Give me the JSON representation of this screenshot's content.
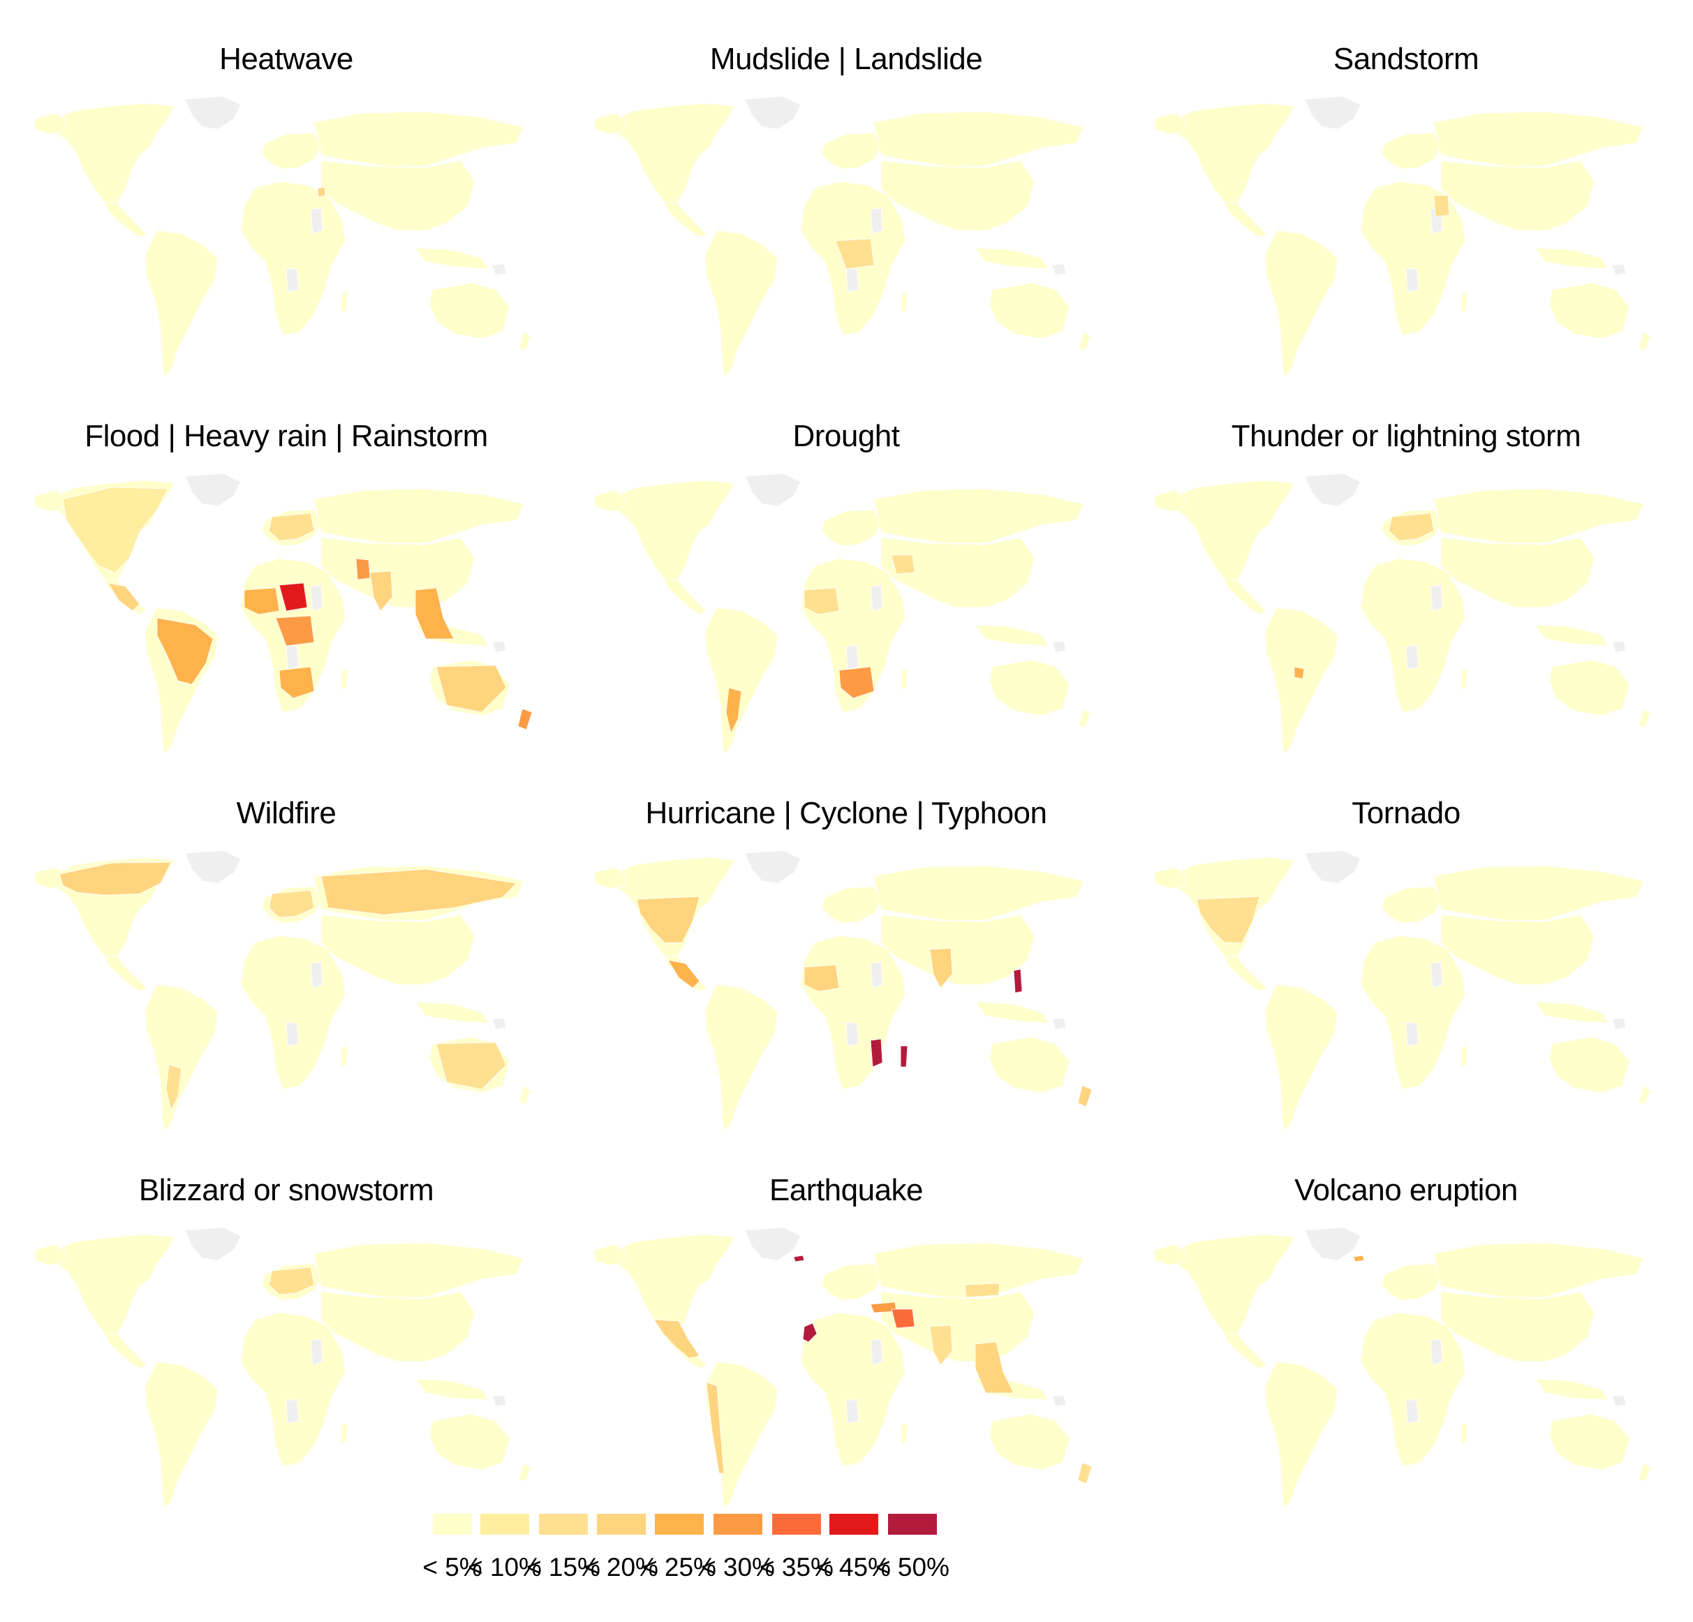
{
  "legend": {
    "bins": [
      {
        "label": "< 5%",
        "color": "#FFFFCC"
      },
      {
        "label": "< 10%",
        "color": "#FFEDA0"
      },
      {
        "label": "< 15%",
        "color": "#FEE090"
      },
      {
        "label": "< 20%",
        "color": "#FED47F"
      },
      {
        "label": "< 25%",
        "color": "#FEB24C"
      },
      {
        "label": "< 30%",
        "color": "#FD9A44"
      },
      {
        "label": "< 35%",
        "color": "#FC6C3B"
      },
      {
        "label": "< 45%",
        "color": "#E31A1C"
      },
      {
        "label": "< 50%",
        "color": "#B31B3D"
      }
    ],
    "no_data_color": "#EFEFEF"
  },
  "panels": [
    {
      "title": "Heatwave",
      "highlights": [
        {
          "region": "middle-east",
          "bin": 3
        }
      ]
    },
    {
      "title": "Mudslide | Landslide",
      "highlights": [
        {
          "region": "central-africa",
          "bin": 2
        }
      ]
    },
    {
      "title": "Sandstorm",
      "highlights": [
        {
          "region": "sudan",
          "bin": 2
        }
      ]
    },
    {
      "title": "Flood | Heavy rain | Rainstorm",
      "highlights": [
        {
          "region": "north-america",
          "bin": 1
        },
        {
          "region": "europe",
          "bin": 2
        },
        {
          "region": "west-africa",
          "bin": 4
        },
        {
          "region": "nigeria-chad",
          "bin": 7
        },
        {
          "region": "central-africa",
          "bin": 5
        },
        {
          "region": "southern-africa",
          "bin": 4
        },
        {
          "region": "south-america",
          "bin": 4
        },
        {
          "region": "pakistan",
          "bin": 5
        },
        {
          "region": "india",
          "bin": 3
        },
        {
          "region": "southeast-asia",
          "bin": 4
        },
        {
          "region": "australia",
          "bin": 3
        },
        {
          "region": "new-zealand",
          "bin": 5
        },
        {
          "region": "central-america",
          "bin": 3
        }
      ]
    },
    {
      "title": "Drought",
      "highlights": [
        {
          "region": "southern-africa",
          "bin": 5
        },
        {
          "region": "iran",
          "bin": 2
        },
        {
          "region": "argentina",
          "bin": 4
        },
        {
          "region": "west-africa",
          "bin": 2
        }
      ]
    },
    {
      "title": "Thunder or lightning storm",
      "highlights": [
        {
          "region": "paraguay",
          "bin": 4
        },
        {
          "region": "europe",
          "bin": 2
        }
      ]
    },
    {
      "title": "Wildfire",
      "highlights": [
        {
          "region": "canada",
          "bin": 3
        },
        {
          "region": "russia",
          "bin": 3
        },
        {
          "region": "australia",
          "bin": 2
        },
        {
          "region": "europe",
          "bin": 2
        },
        {
          "region": "argentina",
          "bin": 2
        }
      ]
    },
    {
      "title": "Hurricane | Cyclone | Typhoon",
      "highlights": [
        {
          "region": "usa",
          "bin": 3
        },
        {
          "region": "mozambique-madagascar",
          "bin": 8
        },
        {
          "region": "philippines",
          "bin": 8
        },
        {
          "region": "india",
          "bin": 3
        },
        {
          "region": "central-america",
          "bin": 4
        },
        {
          "region": "west-africa",
          "bin": 3
        },
        {
          "region": "new-zealand",
          "bin": 3
        }
      ]
    },
    {
      "title": "Tornado",
      "highlights": [
        {
          "region": "usa",
          "bin": 2
        }
      ]
    },
    {
      "title": "Blizzard or snowstorm",
      "highlights": [
        {
          "region": "europe",
          "bin": 2
        }
      ]
    },
    {
      "title": "Earthquake",
      "highlights": [
        {
          "region": "iceland",
          "bin": 8
        },
        {
          "region": "morocco",
          "bin": 8
        },
        {
          "region": "turkey",
          "bin": 5
        },
        {
          "region": "iran",
          "bin": 6
        },
        {
          "region": "mexico",
          "bin": 3
        },
        {
          "region": "andes",
          "bin": 3
        },
        {
          "region": "southeast-asia",
          "bin": 3
        },
        {
          "region": "india",
          "bin": 2
        },
        {
          "region": "mongolia",
          "bin": 2
        },
        {
          "region": "new-zealand",
          "bin": 2
        }
      ]
    },
    {
      "title": "Volcano eruption",
      "highlights": [
        {
          "region": "iceland",
          "bin": 4
        }
      ]
    }
  ]
}
